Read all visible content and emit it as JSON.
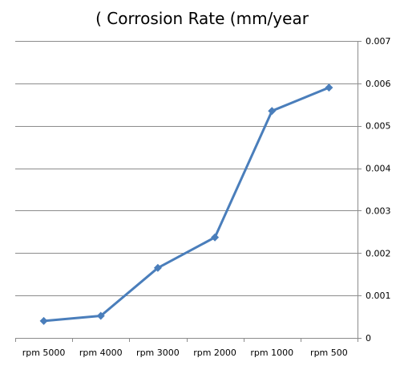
{
  "chart_data": {
    "type": "line",
    "title": "( Corrosion Rate (mm/year",
    "xlabel": "",
    "ylabel": "",
    "categories": [
      "rpm 5000",
      "rpm 4000",
      "rpm 3000",
      "rpm 2000",
      "rpm 1000",
      "rpm 500"
    ],
    "series": [
      {
        "color": "#4a7ebb",
        "marker": "diamond",
        "values": [
          0.0004,
          0.00052,
          0.00165,
          0.00237,
          0.00535,
          0.0059
        ]
      }
    ],
    "ylim": [
      0,
      0.007
    ],
    "yticks": [
      0,
      0.001,
      0.002,
      0.003,
      0.004,
      0.005,
      0.006,
      0.007
    ],
    "ytick_labels": [
      "0",
      "0.001",
      "0.002",
      "0.003",
      "0.004",
      "0.005",
      "0.006",
      "0.007"
    ],
    "y_axis_side": "right",
    "grid": true,
    "legend": false
  }
}
